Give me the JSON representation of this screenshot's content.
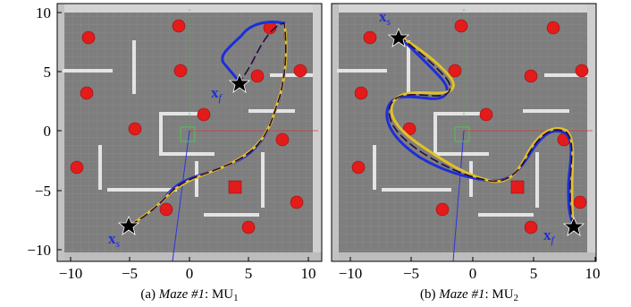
{
  "panels": [
    {
      "caption_prefix": "(a) ",
      "caption_maze": "Maze #1",
      "caption_sep": ": ",
      "caption_method": "MU",
      "caption_sub": "1",
      "start_label": "x",
      "start_sub": "s",
      "goal_label": "x",
      "goal_sub": "f"
    },
    {
      "caption_prefix": "(b) ",
      "caption_maze": "Maze #1",
      "caption_sep": ": ",
      "caption_method": "MU",
      "caption_sub": "2",
      "start_label": "x",
      "start_sub": "s",
      "goal_label": "x",
      "goal_sub": "f"
    }
  ],
  "axes": {
    "y_ticks": [
      "10",
      "5",
      "0",
      "−5",
      "−10"
    ],
    "x_ticks": [
      "−10",
      "−5",
      "0",
      "5",
      "10"
    ],
    "xlim": [
      -11,
      10.5
    ],
    "ylim": [
      -11,
      10.5
    ]
  },
  "colors": {
    "floor": "#7e7e7e",
    "wall": "#e6e6e6",
    "obstacle": "#e21a1a",
    "path_blue": "#1c2fd8",
    "path_dark": "#2a0a3a",
    "path_yellow": "#e0c228",
    "label_blue": "#1f2fd6"
  }
}
